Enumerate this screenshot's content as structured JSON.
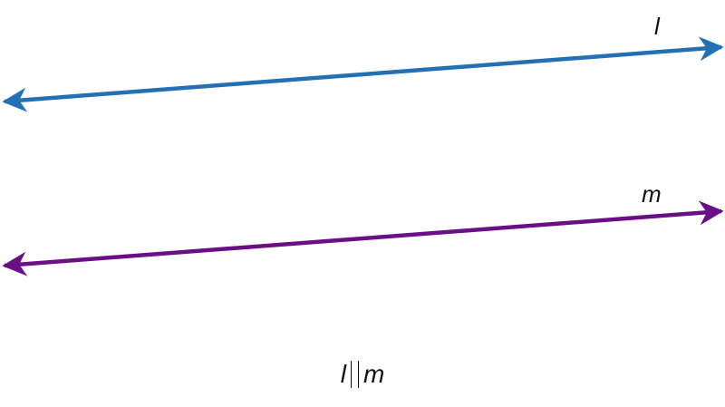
{
  "diagram": {
    "lines": [
      {
        "label": "l",
        "color": "#2470B5"
      },
      {
        "label": "m",
        "color": "#6A0F86"
      }
    ],
    "statement": {
      "left": "l",
      "symbol": "parallel-symbol",
      "right": "m"
    }
  }
}
